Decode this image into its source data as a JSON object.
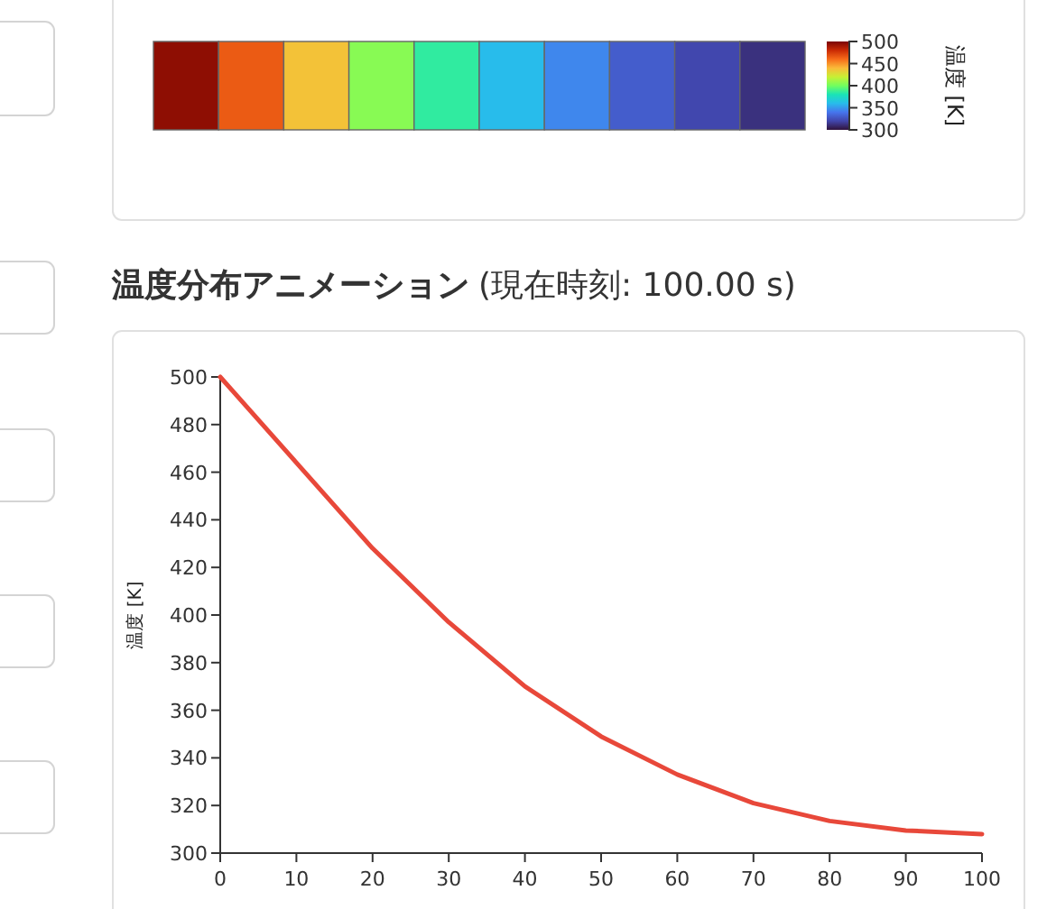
{
  "chart_data": [
    {
      "type": "heatmap",
      "categories": [
        null,
        null,
        null,
        null,
        null,
        null,
        null,
        null,
        null,
        null
      ],
      "y_categories": [
        null
      ],
      "cells": [
        [
          495,
          465,
          437,
          405,
          385,
          360,
          345,
          330,
          321,
          312
        ]
      ],
      "clim": [
        300,
        500
      ],
      "cticks": [
        300,
        350,
        400,
        450,
        500
      ],
      "clabel": "温度 [K]"
    },
    {
      "type": "line",
      "title": "温度分布アニメーション",
      "subtitle": "(現在時刻: 100.00 s)",
      "ylabel": "温度 [K]",
      "x": [
        0,
        10,
        20,
        30,
        40,
        50,
        60,
        70,
        80,
        90,
        100
      ],
      "series": [
        {
          "color": "#e8483a",
          "values": [
            500,
            464,
            428,
            397,
            370,
            349,
            333,
            321,
            313.5,
            309.5,
            308
          ]
        }
      ],
      "xlim": [
        0,
        100
      ],
      "ylim": [
        300,
        500
      ],
      "xticks": [
        0,
        10,
        20,
        30,
        40,
        50,
        60,
        70,
        80,
        90,
        100
      ],
      "yticks": [
        300,
        320,
        340,
        360,
        380,
        400,
        420,
        440,
        460,
        480,
        500
      ],
      "grid": false,
      "marker": "none",
      "line_style": "solid"
    }
  ]
}
